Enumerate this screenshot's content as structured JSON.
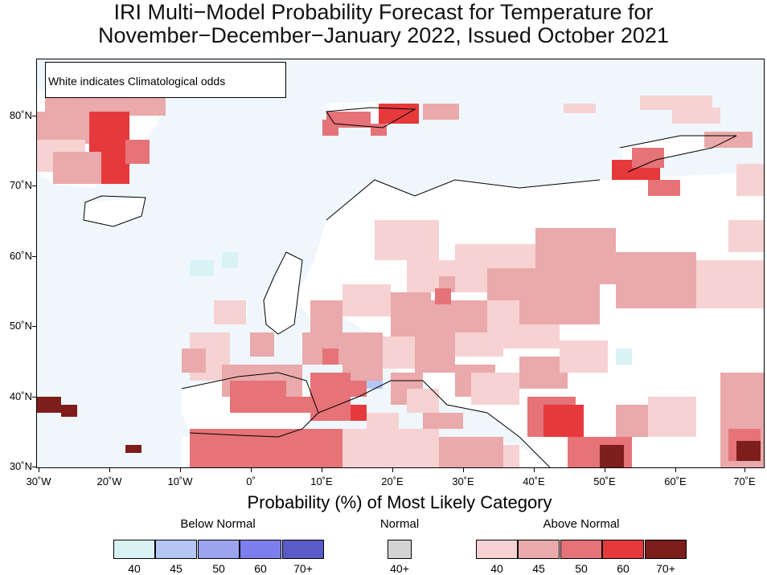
{
  "header": {
    "title_line1": "IRI Multi−Model Probability Forecast for Temperature for",
    "title_line2": "November−December−January 2022, Issued October 2021"
  },
  "map": {
    "note": "White indicates Climatological odds",
    "lat_labels": [
      "80˚N",
      "70˚N",
      "60˚N",
      "50˚N",
      "40˚N",
      "30˚N"
    ],
    "lon_labels": [
      "30˚W",
      "20˚W",
      "10˚W",
      "0˚",
      "10˚E",
      "20˚E",
      "30˚E",
      "40˚E",
      "50˚E",
      "60˚E",
      "70˚E"
    ],
    "x_axis_label": "Probability (%) of Most Likely Category",
    "colors": {
      "ocean": "#eff7fd",
      "climatology": "#ffffff",
      "below": [
        "#d8f2f6",
        "#b4c6f4",
        "#9ca4f0",
        "#7d7eee",
        "#5a5ac8"
      ],
      "normal": "#d3d3d3",
      "above": [
        "#f6d2d2",
        "#eaa9aa",
        "#e57378",
        "#e5393c",
        "#7e1e1c"
      ]
    }
  },
  "legend": {
    "below_title": "Below Normal",
    "normal_title": "Normal",
    "above_title": "Above Normal",
    "below_labels": [
      "40",
      "45",
      "50",
      "60",
      "70+"
    ],
    "normal_labels": [
      "40+"
    ],
    "above_labels": [
      "40",
      "45",
      "50",
      "60",
      "70+"
    ]
  }
}
